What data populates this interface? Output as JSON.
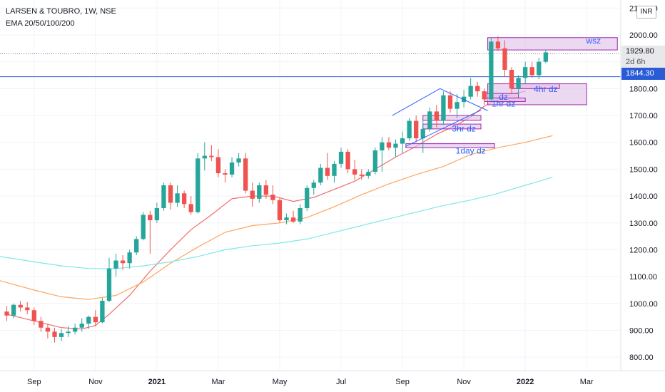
{
  "header": {
    "symbol_line": "LARSEN & TOUBRO, 1W, NSE",
    "indicator_line": "EMA 20/50/100/200"
  },
  "currency_badge": "INR",
  "price_labels": {
    "current": "1929.80",
    "countdown": "2d 6h",
    "hline": "1844.30"
  },
  "colors": {
    "up": "#26a69a",
    "down": "#ef5350",
    "ema20": "#f26b6b",
    "ema50": "#ffa55c",
    "ema100": "#7fe8e8",
    "hline": "#2a5bd7",
    "zone_fill": "#e1bee7",
    "zone_stroke": "#9c27b0",
    "annotation_text": "#2962ff",
    "channel": "#2962ff"
  },
  "chart_data": {
    "type": "candlestick",
    "y_range": [
      750,
      2130
    ],
    "y_ticks": [
      800,
      900,
      1000,
      1100,
      1200,
      1300,
      1400,
      1500,
      1600,
      1700,
      1800,
      1900,
      2000,
      2100
    ],
    "y_tick_labels": [
      "800.00",
      "900.00",
      "1000.00",
      "1100.00",
      "1200.00",
      "1300.00",
      "1400.00",
      "1500.00",
      "1600.00",
      "1700.00",
      "1800.00",
      "1900.00",
      "2000.00",
      "2100.00"
    ],
    "x_tick_labels": [
      {
        "label": "Sep",
        "week": 4
      },
      {
        "label": "Nov",
        "week": 13
      },
      {
        "label": "2021",
        "week": 22
      },
      {
        "label": "Mar",
        "week": 31
      },
      {
        "label": "May",
        "week": 40
      },
      {
        "label": "Jul",
        "week": 49
      },
      {
        "label": "Sep",
        "week": 58
      },
      {
        "label": "Nov",
        "week": 67
      },
      {
        "label": "2022",
        "week": 76
      },
      {
        "label": "Mar",
        "week": 85
      }
    ],
    "candles": [
      [
        970,
        990,
        935,
        955
      ],
      [
        955,
        1000,
        945,
        995
      ],
      [
        995,
        1010,
        970,
        985
      ],
      [
        985,
        1005,
        960,
        975
      ],
      [
        975,
        985,
        920,
        935
      ],
      [
        935,
        950,
        895,
        910
      ],
      [
        910,
        925,
        870,
        895
      ],
      [
        895,
        910,
        855,
        875
      ],
      [
        875,
        905,
        860,
        890
      ],
      [
        890,
        915,
        875,
        895
      ],
      [
        895,
        925,
        885,
        910
      ],
      [
        910,
        945,
        895,
        925
      ],
      [
        925,
        955,
        905,
        950
      ],
      [
        950,
        975,
        915,
        930
      ],
      [
        930,
        1020,
        925,
        1010
      ],
      [
        1010,
        1170,
        1005,
        1130
      ],
      [
        1130,
        1185,
        1100,
        1160
      ],
      [
        1160,
        1180,
        1125,
        1150
      ],
      [
        1150,
        1200,
        1130,
        1190
      ],
      [
        1190,
        1250,
        1180,
        1240
      ],
      [
        1240,
        1340,
        1235,
        1330
      ],
      [
        1330,
        1345,
        1185,
        1310
      ],
      [
        1310,
        1375,
        1300,
        1355
      ],
      [
        1355,
        1450,
        1345,
        1440
      ],
      [
        1440,
        1450,
        1350,
        1375
      ],
      [
        1375,
        1440,
        1360,
        1410
      ],
      [
        1410,
        1420,
        1355,
        1370
      ],
      [
        1370,
        1400,
        1330,
        1340
      ],
      [
        1340,
        1560,
        1335,
        1540
      ],
      [
        1540,
        1600,
        1495,
        1550
      ],
      [
        1550,
        1590,
        1530,
        1545
      ],
      [
        1545,
        1575,
        1470,
        1485
      ],
      [
        1485,
        1500,
        1450,
        1480
      ],
      [
        1480,
        1545,
        1470,
        1525
      ],
      [
        1525,
        1560,
        1510,
        1540
      ],
      [
        1540,
        1560,
        1410,
        1420
      ],
      [
        1420,
        1450,
        1360,
        1390
      ],
      [
        1390,
        1450,
        1375,
        1440
      ],
      [
        1440,
        1460,
        1390,
        1405
      ],
      [
        1405,
        1440,
        1370,
        1385
      ],
      [
        1385,
        1395,
        1300,
        1310
      ],
      [
        1310,
        1335,
        1295,
        1320
      ],
      [
        1320,
        1345,
        1300,
        1305
      ],
      [
        1305,
        1370,
        1295,
        1355
      ],
      [
        1355,
        1440,
        1345,
        1430
      ],
      [
        1430,
        1460,
        1405,
        1450
      ],
      [
        1450,
        1520,
        1440,
        1505
      ],
      [
        1505,
        1560,
        1460,
        1475
      ],
      [
        1475,
        1530,
        1450,
        1520
      ],
      [
        1520,
        1580,
        1505,
        1565
      ],
      [
        1565,
        1575,
        1485,
        1500
      ],
      [
        1500,
        1535,
        1460,
        1480
      ],
      [
        1480,
        1500,
        1460,
        1475
      ],
      [
        1475,
        1500,
        1465,
        1490
      ],
      [
        1490,
        1580,
        1480,
        1570
      ],
      [
        1570,
        1620,
        1490,
        1600
      ],
      [
        1600,
        1620,
        1570,
        1580
      ],
      [
        1580,
        1610,
        1545,
        1595
      ],
      [
        1595,
        1640,
        1560,
        1615
      ],
      [
        1615,
        1690,
        1605,
        1680
      ],
      [
        1680,
        1700,
        1600,
        1615
      ],
      [
        1615,
        1680,
        1560,
        1650
      ],
      [
        1650,
        1730,
        1640,
        1715
      ],
      [
        1715,
        1740,
        1655,
        1680
      ],
      [
        1680,
        1790,
        1665,
        1775
      ],
      [
        1775,
        1790,
        1710,
        1725
      ],
      [
        1725,
        1780,
        1690,
        1750
      ],
      [
        1750,
        1795,
        1730,
        1770
      ],
      [
        1770,
        1840,
        1760,
        1810
      ],
      [
        1810,
        1825,
        1770,
        1790
      ],
      [
        1790,
        1800,
        1740,
        1760
      ],
      [
        1760,
        1990,
        1755,
        1975
      ],
      [
        1975,
        1995,
        1940,
        1950
      ],
      [
        1950,
        1980,
        1845,
        1870
      ],
      [
        1870,
        1880,
        1780,
        1800
      ],
      [
        1800,
        1850,
        1775,
        1840
      ],
      [
        1840,
        1900,
        1820,
        1880
      ],
      [
        1880,
        1900,
        1840,
        1850
      ],
      [
        1850,
        1915,
        1835,
        1900
      ],
      [
        1900,
        1945,
        1895,
        1935
      ]
    ],
    "x_range": [
      -1,
      90
    ],
    "ema": [
      {
        "label": "20",
        "color_key": "ema20",
        "points": [
          [
            0,
            960
          ],
          [
            4,
            935
          ],
          [
            8,
            910
          ],
          [
            11,
            905
          ],
          [
            13,
            918
          ],
          [
            15,
            960
          ],
          [
            18,
            1030
          ],
          [
            21,
            1120
          ],
          [
            24,
            1200
          ],
          [
            27,
            1275
          ],
          [
            30,
            1330
          ],
          [
            33,
            1390
          ],
          [
            36,
            1400
          ],
          [
            39,
            1400
          ],
          [
            42,
            1380
          ],
          [
            45,
            1395
          ],
          [
            48,
            1425
          ],
          [
            51,
            1455
          ],
          [
            54,
            1500
          ],
          [
            57,
            1545
          ],
          [
            60,
            1585
          ],
          [
            63,
            1630
          ],
          [
            66,
            1665
          ],
          [
            68,
            1695
          ],
          [
            70,
            1735
          ],
          [
            72,
            1760
          ],
          [
            74,
            1780
          ],
          [
            76,
            1790
          ]
        ]
      },
      {
        "label": "50",
        "color_key": "ema50",
        "points": [
          [
            -1,
            1085
          ],
          [
            4,
            1050
          ],
          [
            8,
            1025
          ],
          [
            12,
            1015
          ],
          [
            16,
            1030
          ],
          [
            20,
            1080
          ],
          [
            24,
            1150
          ],
          [
            28,
            1210
          ],
          [
            32,
            1265
          ],
          [
            36,
            1290
          ],
          [
            40,
            1300
          ],
          [
            44,
            1320
          ],
          [
            48,
            1360
          ],
          [
            52,
            1405
          ],
          [
            56,
            1445
          ],
          [
            60,
            1480
          ],
          [
            64,
            1510
          ],
          [
            68,
            1555
          ],
          [
            72,
            1580
          ],
          [
            76,
            1600
          ],
          [
            80,
            1625
          ]
        ]
      },
      {
        "label": "100",
        "color_key": "ema100",
        "points": [
          [
            -1,
            1175
          ],
          [
            4,
            1155
          ],
          [
            8,
            1140
          ],
          [
            12,
            1130
          ],
          [
            16,
            1130
          ],
          [
            20,
            1140
          ],
          [
            24,
            1155
          ],
          [
            28,
            1175
          ],
          [
            32,
            1200
          ],
          [
            36,
            1215
          ],
          [
            40,
            1225
          ],
          [
            44,
            1240
          ],
          [
            48,
            1265
          ],
          [
            52,
            1290
          ],
          [
            56,
            1315
          ],
          [
            60,
            1340
          ],
          [
            64,
            1365
          ],
          [
            68,
            1385
          ],
          [
            72,
            1410
          ],
          [
            76,
            1440
          ],
          [
            80,
            1470
          ]
        ]
      }
    ],
    "hline": 1844.3,
    "current_price": 1929.8,
    "zones": [
      {
        "label": "wsz",
        "x0": 70.5,
        "x1": 89.5,
        "y0": 1944,
        "y1": 1990
      },
      {
        "label": "",
        "x0": 70.5,
        "x1": 85,
        "y0": 1740,
        "y1": 1818
      },
      {
        "label": "4hr dz",
        "x0": 74,
        "x1": 81,
        "y0": 1800,
        "y1": 1818
      },
      {
        "label": "dz",
        "x0": 70,
        "x1": 75,
        "y0": 1765,
        "y1": 1782
      },
      {
        "label": "1hr dz",
        "x0": 70,
        "x1": 76,
        "y0": 1752,
        "y1": 1765
      },
      {
        "label": "3hr dz",
        "x0": 61,
        "x1": 69.5,
        "y0": 1682,
        "y1": 1700
      },
      {
        "label": "",
        "x0": 61,
        "x1": 69.5,
        "y0": 1650,
        "y1": 1668
      },
      {
        "label": "1day dz",
        "x0": 58.5,
        "x1": 71.5,
        "y0": 1580,
        "y1": 1595
      }
    ],
    "channel_lines": [
      {
        "from": [
          56.5,
          1700
        ],
        "to": [
          63.5,
          1800
        ]
      },
      {
        "from": [
          58.5,
          1585
        ],
        "to": [
          69.5,
          1720
        ]
      },
      {
        "from": [
          63.5,
          1800
        ],
        "to": [
          70.5,
          1718
        ]
      }
    ],
    "annotations": [
      {
        "text": "wsz",
        "x": 86,
        "y": 1968
      },
      {
        "text": "4hr dz",
        "x": 79,
        "y": 1788
      },
      {
        "text": "dz",
        "x": 72.8,
        "y": 1758
      },
      {
        "text": "1hr dz",
        "x": 72.8,
        "y": 1733
      },
      {
        "text": "3hr dz",
        "x": 67,
        "y": 1640
      },
      {
        "text": "1day dz",
        "x": 68,
        "y": 1558
      }
    ]
  }
}
